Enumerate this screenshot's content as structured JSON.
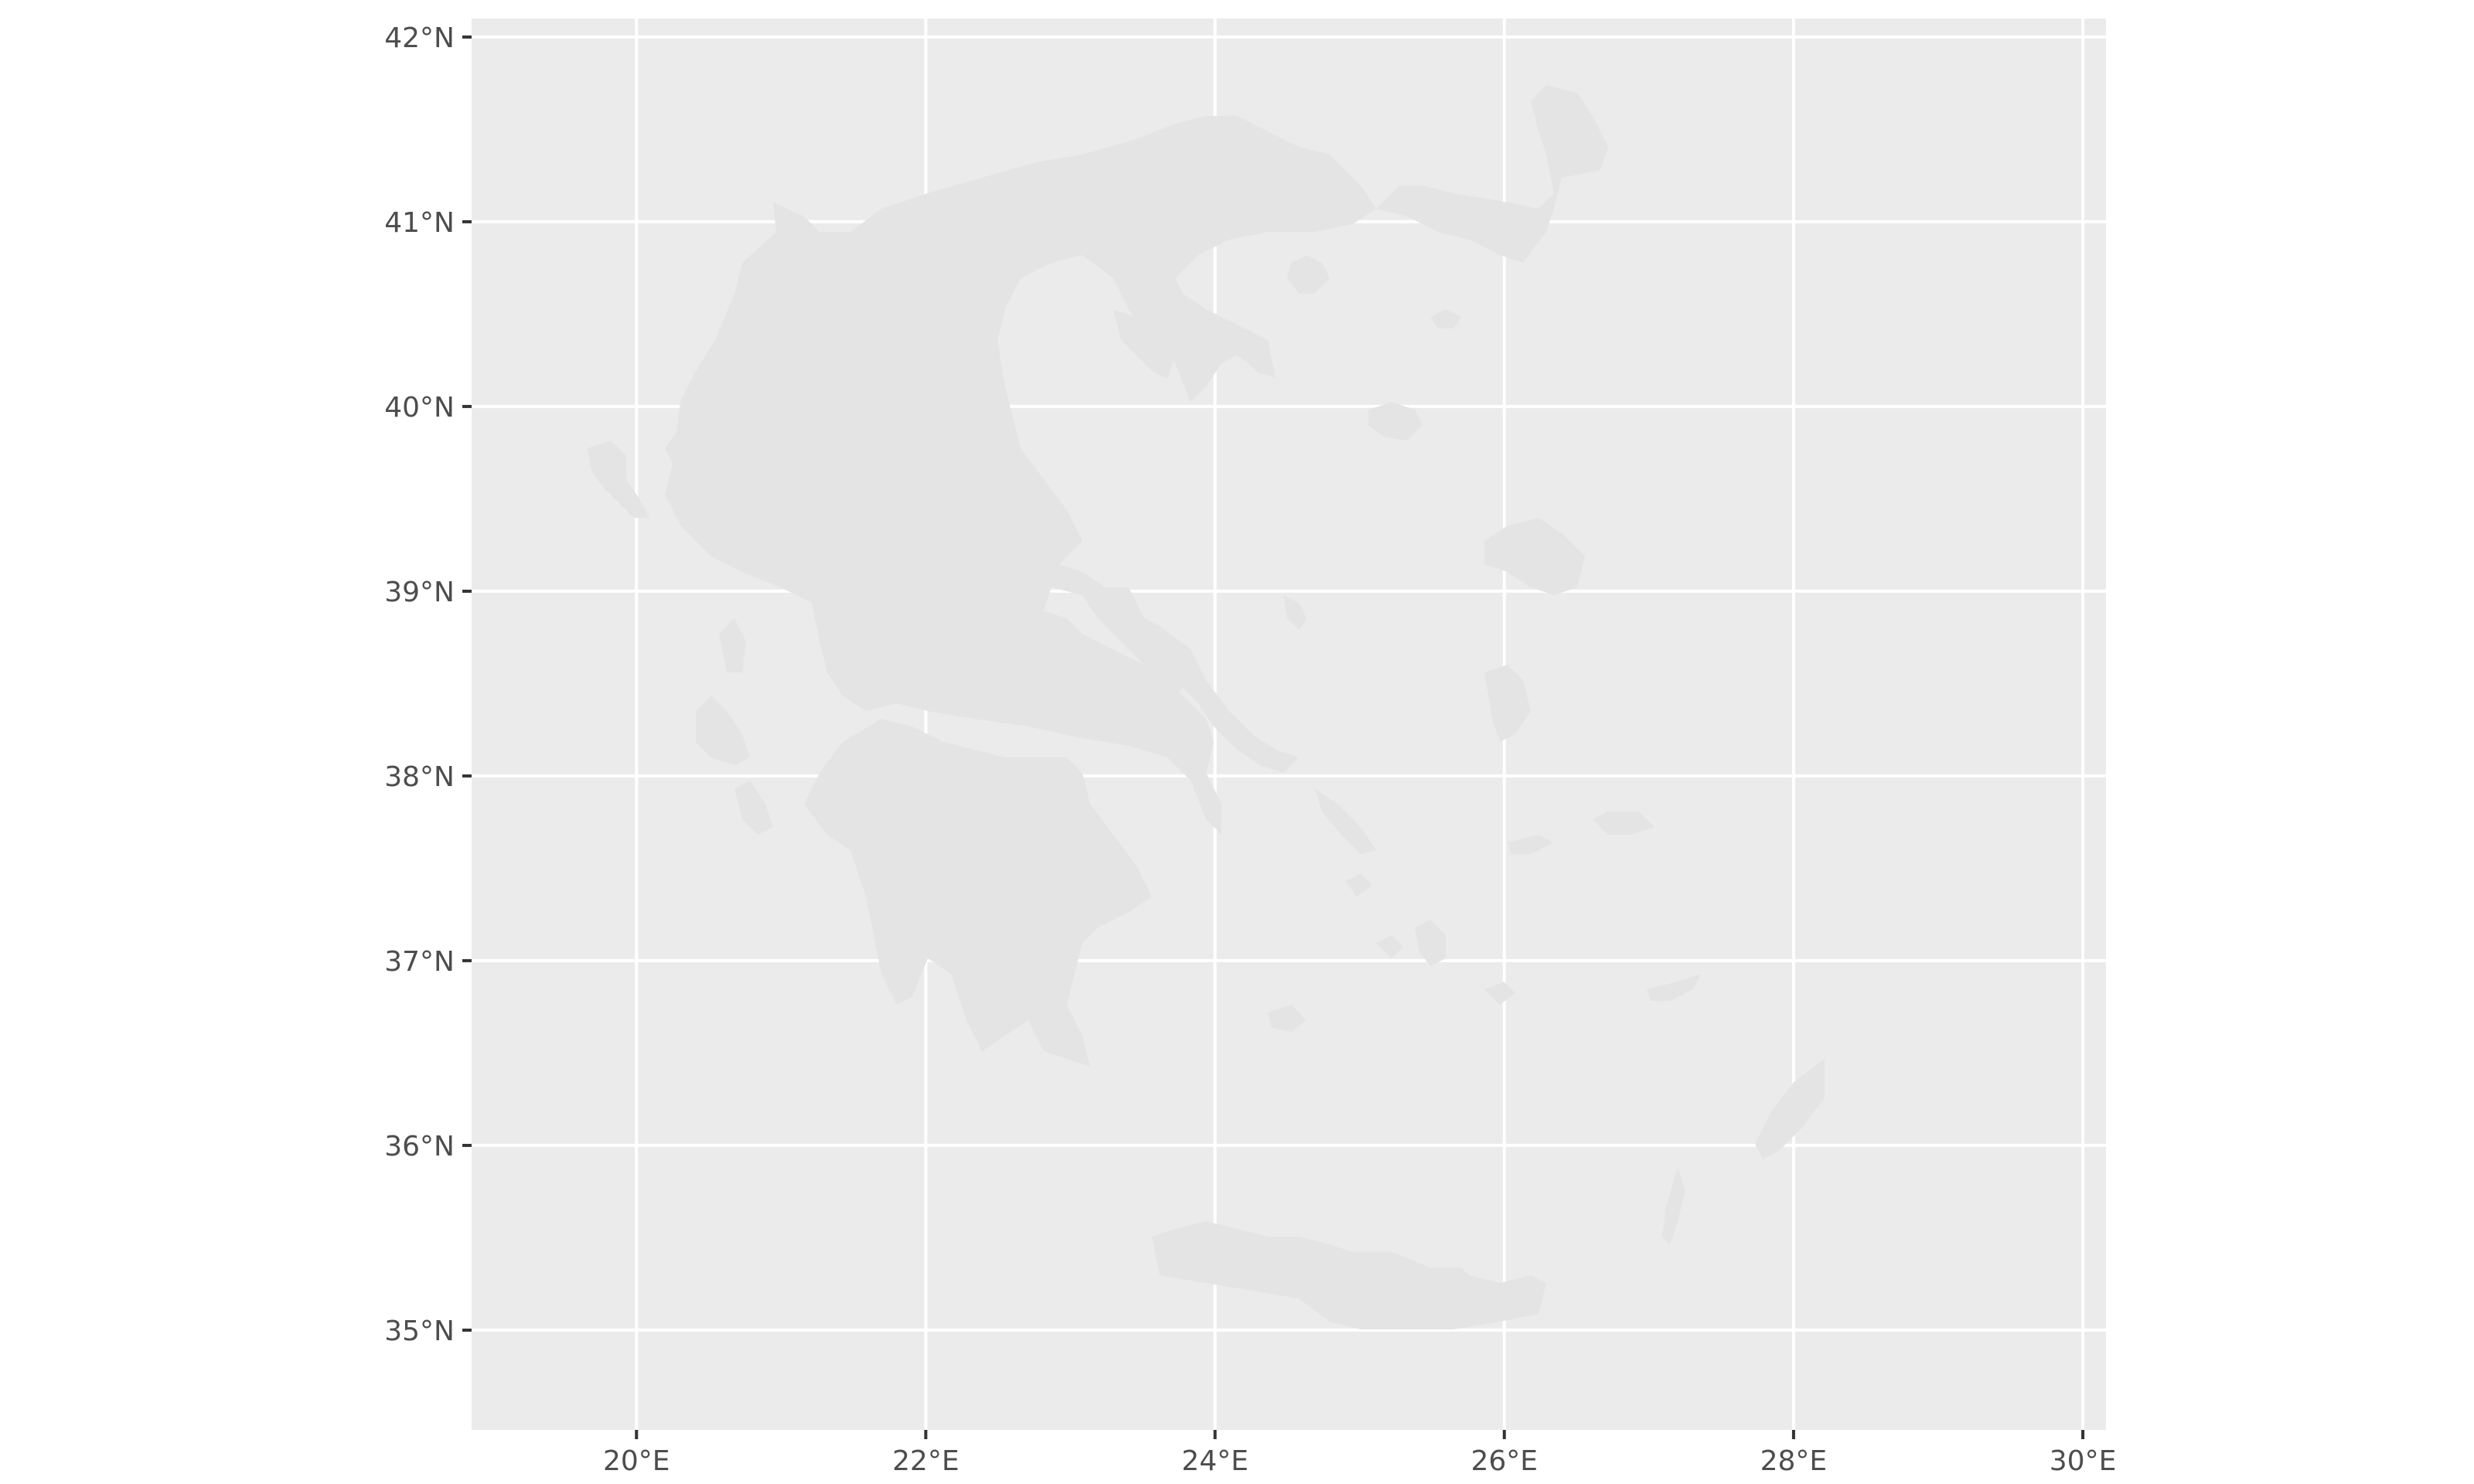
{
  "chart_data": {
    "type": "map",
    "xlim": [
      18.86,
      30.16
    ],
    "ylim": [
      34.46,
      42.1
    ],
    "x_ticks": [
      {
        "value": 20,
        "label": "20°E"
      },
      {
        "value": 22,
        "label": "22°E"
      },
      {
        "value": 24,
        "label": "24°E"
      },
      {
        "value": 26,
        "label": "26°E"
      },
      {
        "value": 28,
        "label": "28°E"
      },
      {
        "value": 30,
        "label": "30°E"
      }
    ],
    "y_ticks": [
      {
        "value": 42,
        "label": "42°N"
      },
      {
        "value": 41,
        "label": "41°N"
      },
      {
        "value": 40,
        "label": "40°N"
      },
      {
        "value": 39,
        "label": "39°N"
      },
      {
        "value": 38,
        "label": "38°N"
      },
      {
        "value": 37,
        "label": "37°N"
      },
      {
        "value": 36,
        "label": "36°N"
      },
      {
        "value": 35,
        "label": "35°N"
      }
    ],
    "grid": true,
    "colors": {
      "panel": "#ebebeb",
      "grid": "#ffffff",
      "land": "#e4e4e4",
      "tick": "#333333",
      "label": "#4d4d4d"
    }
  }
}
